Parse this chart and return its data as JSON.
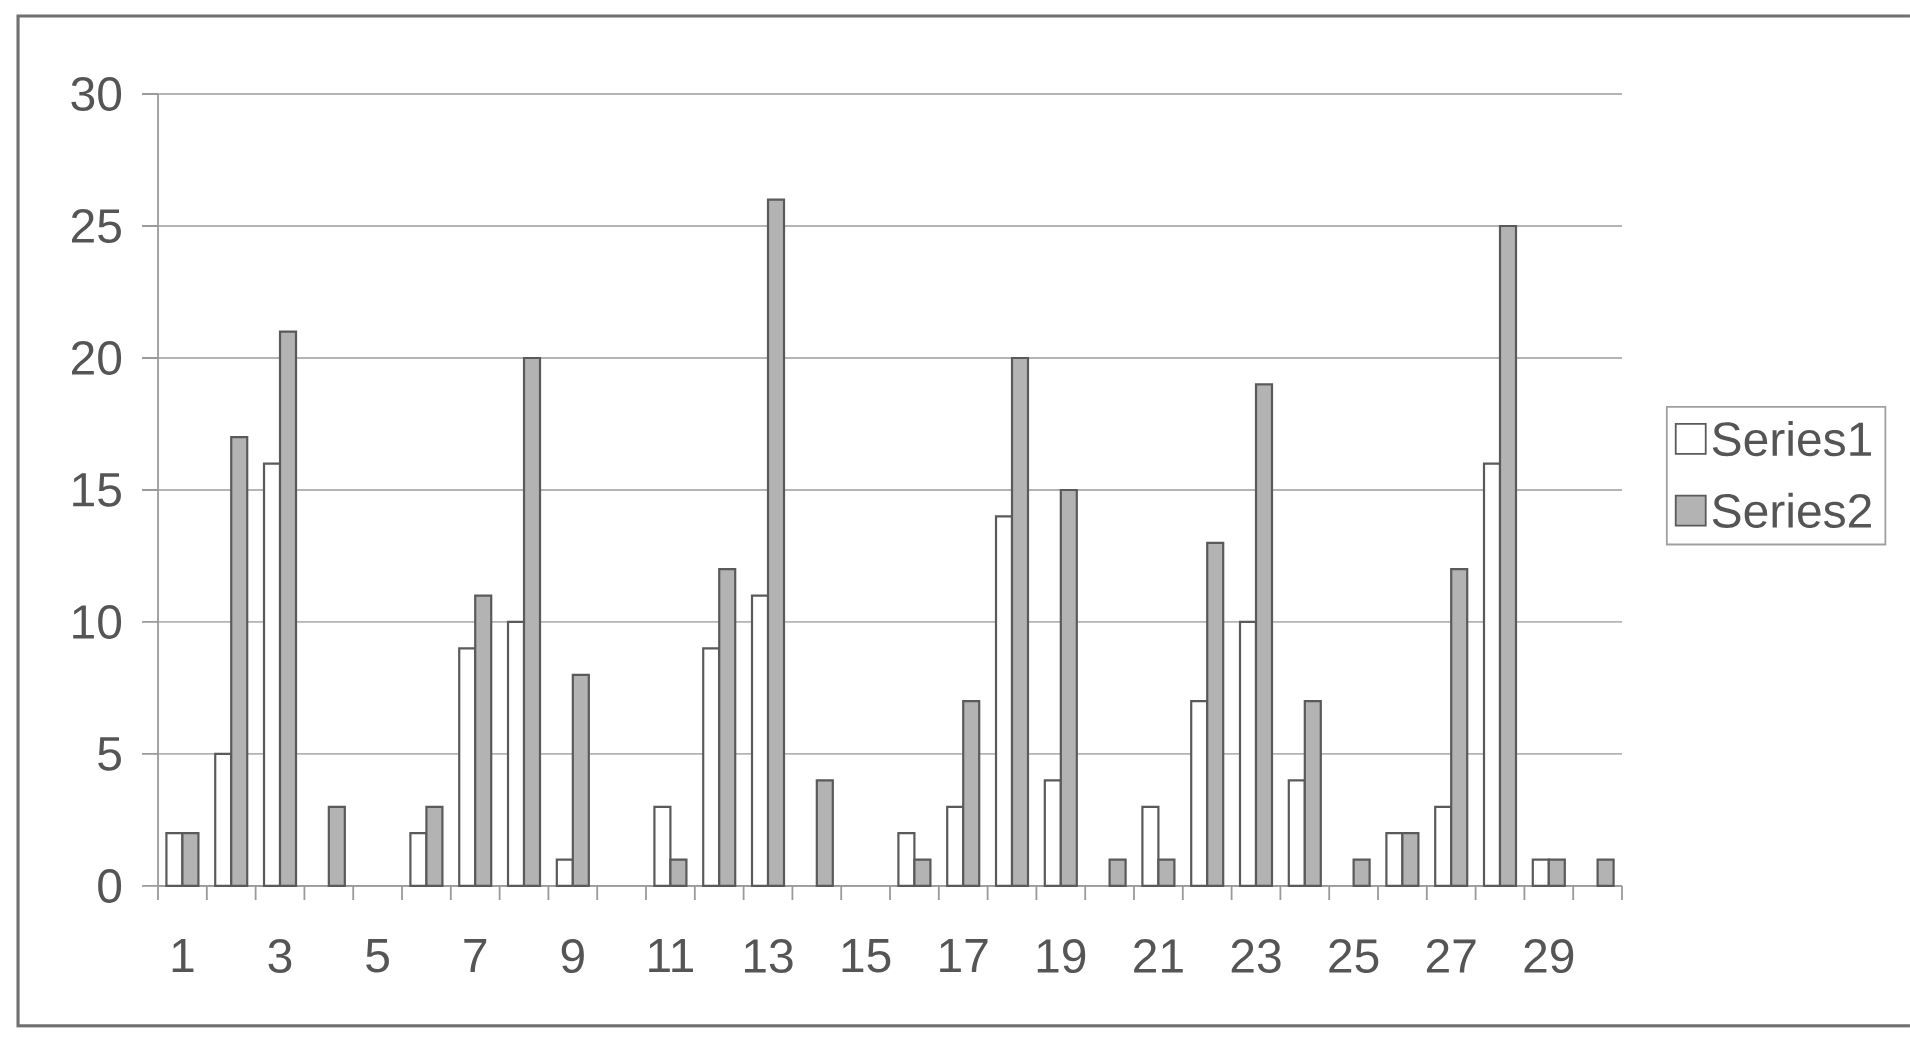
{
  "chart_data": {
    "type": "bar",
    "categories": [
      "1",
      null,
      "3",
      null,
      "5",
      null,
      "7",
      null,
      "9",
      null,
      "11",
      null,
      "13",
      null,
      "15",
      null,
      "17",
      null,
      "19",
      null,
      "21",
      null,
      "23",
      null,
      "25",
      null,
      "27",
      null,
      "29",
      null
    ],
    "series": [
      {
        "name": "Series1",
        "color": "#ffffff",
        "values": [
          2,
          5,
          16,
          null,
          null,
          2,
          9,
          10,
          1,
          null,
          3,
          9,
          11,
          null,
          null,
          2,
          3,
          14,
          4,
          null,
          3,
          7,
          10,
          4,
          null,
          2,
          3,
          16,
          1,
          null
        ]
      },
      {
        "name": "Series2",
        "color": "#b3b3b3",
        "values": [
          2,
          17,
          21,
          3,
          null,
          3,
          11,
          20,
          8,
          null,
          1,
          12,
          26,
          4,
          null,
          1,
          7,
          20,
          15,
          1,
          1,
          13,
          19,
          7,
          1,
          2,
          12,
          25,
          1,
          1
        ]
      }
    ],
    "ylim": [
      0,
      30
    ],
    "yticks": [
      0,
      5,
      10,
      15,
      20,
      25,
      30
    ],
    "grid": "y",
    "legend": "right"
  }
}
